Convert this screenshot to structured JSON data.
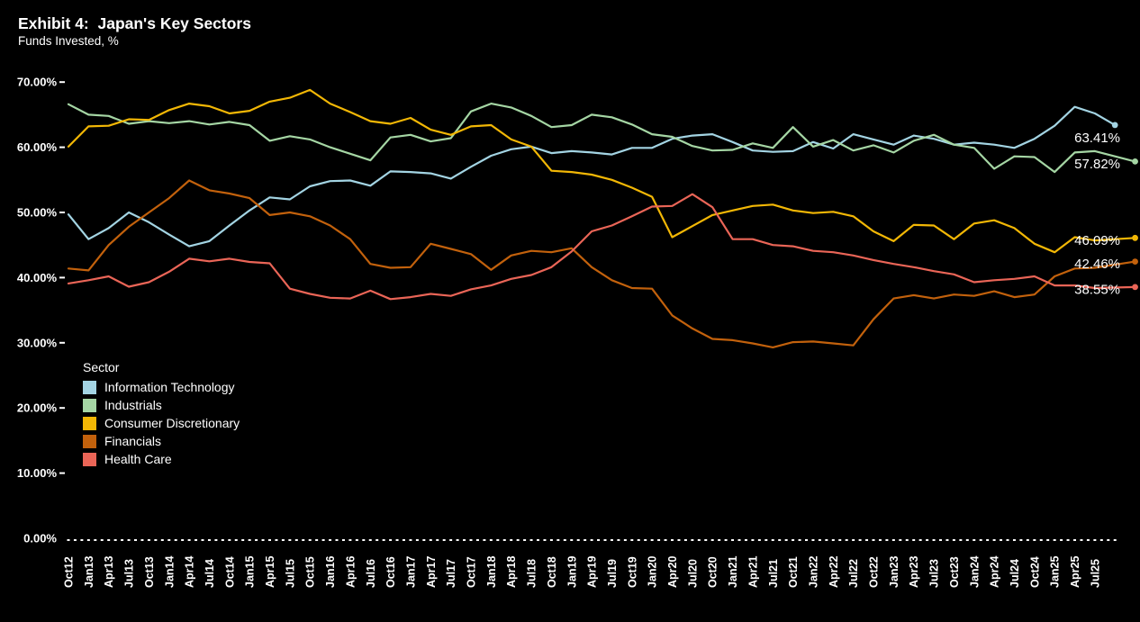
{
  "page": {
    "background": "#000000",
    "text_color": "#ffffff"
  },
  "header": {
    "title": "Exhibit 4:  Japan's Key Sectors",
    "subtitle": "Funds Invested, %"
  },
  "legend": {
    "title": "Sector"
  },
  "chart_data": {
    "type": "line",
    "title": "Exhibit 4:  Japan's Key Sectors",
    "ylabel": "Funds Invested, %",
    "ylim": [
      0,
      70
    ],
    "grid": false,
    "legend_position": "left-middle",
    "y_tick_labels": [
      "70.00%",
      "60.00%",
      "50.00%",
      "40.00%",
      "30.00%",
      "20.00%",
      "10.00%",
      "0.00%"
    ],
    "y_tick_values": [
      70,
      60,
      50,
      40,
      30,
      20,
      10,
      0
    ],
    "categories": [
      "Oct12",
      "Jan13",
      "Apr13",
      "Jul13",
      "Oct13",
      "Jan14",
      "Apr14",
      "Jul14",
      "Oct14",
      "Jan15",
      "Apr15",
      "Jul15",
      "Oct15",
      "Jan16",
      "Apr16",
      "Jul16",
      "Oct16",
      "Jan17",
      "Apr17",
      "Jul17",
      "Oct17",
      "Jan18",
      "Apr18",
      "Jul18",
      "Oct18",
      "Jan19",
      "Apr19",
      "Jul19",
      "Oct19",
      "Jan20",
      "Apr20",
      "Jul20",
      "Oct20",
      "Jan21",
      "Apr21",
      "Jul21",
      "Oct21",
      "Jan22",
      "Apr22",
      "Jul22",
      "Oct22",
      "Jan23",
      "Apr23",
      "Jul23",
      "Oct23",
      "Jan24",
      "Apr24",
      "Jul24",
      "Oct24",
      "Jan25",
      "Apr25",
      "Jul25"
    ],
    "series": [
      {
        "name": "Information Technology",
        "color": "#A3D4E3",
        "end_label": "63.41%",
        "end_value": 63.41,
        "end_month": 156,
        "values": [
          49.7,
          45.9,
          47.6,
          50.0,
          48.5,
          46.6,
          44.8,
          45.6,
          48.0,
          50.3,
          52.3,
          52.0,
          54.0,
          54.8,
          54.9,
          54.1,
          56.3,
          56.2,
          56.0,
          55.2,
          57.0,
          58.7,
          59.7,
          60.1,
          59.1,
          59.4,
          59.2,
          58.9,
          59.9,
          59.9,
          61.3,
          61.8,
          62.0,
          60.8,
          59.5,
          59.3,
          59.4,
          60.8,
          59.8,
          62.0,
          61.2,
          60.4,
          61.8,
          61.3,
          60.4,
          60.7,
          60.4,
          59.9,
          61.3,
          63.3,
          66.2,
          65.2
        ]
      },
      {
        "name": "Industrials",
        "color": "#A5D6A4",
        "end_label": "57.82%",
        "end_value": 57.82,
        "end_month": 159,
        "values": [
          66.6,
          65.0,
          64.8,
          63.6,
          64.0,
          63.7,
          64.0,
          63.5,
          63.9,
          63.4,
          61.0,
          61.7,
          61.2,
          60.0,
          59.0,
          58.0,
          61.5,
          61.9,
          60.9,
          61.4,
          65.5,
          66.7,
          66.1,
          64.8,
          63.1,
          63.4,
          65.0,
          64.6,
          63.5,
          62.0,
          61.6,
          60.2,
          59.5,
          59.6,
          60.6,
          59.9,
          63.1,
          60.1,
          61.1,
          59.5,
          60.3,
          59.2,
          61.0,
          61.9,
          60.4,
          59.9,
          56.7,
          58.6,
          58.5,
          56.2,
          59.2,
          59.4
        ]
      },
      {
        "name": "Consumer Discretionary",
        "color": "#F2B705",
        "end_label": "46.09%",
        "end_value": 46.09,
        "end_month": 159,
        "values": [
          60.1,
          63.2,
          63.3,
          64.3,
          64.2,
          65.7,
          66.7,
          66.3,
          65.2,
          65.6,
          67.0,
          67.6,
          68.8,
          66.7,
          65.4,
          64.0,
          63.6,
          64.5,
          62.7,
          61.9,
          63.2,
          63.4,
          61.2,
          60.1,
          56.4,
          56.2,
          55.8,
          55.0,
          53.8,
          52.4,
          46.2,
          47.9,
          49.6,
          50.3,
          51.0,
          51.2,
          50.3,
          49.9,
          50.1,
          49.4,
          47.1,
          45.6,
          48.1,
          48.0,
          45.9,
          48.3,
          48.8,
          47.6,
          45.2,
          43.9,
          46.2,
          45.7
        ]
      },
      {
        "name": "Financials",
        "color": "#C2610C",
        "end_label": "42.46%",
        "end_value": 42.46,
        "end_month": 159,
        "values": [
          41.4,
          41.1,
          45.0,
          47.8,
          50.0,
          52.2,
          54.9,
          53.4,
          52.9,
          52.2,
          49.6,
          50.0,
          49.4,
          48.0,
          45.9,
          42.1,
          41.5,
          41.6,
          45.2,
          44.4,
          43.6,
          41.2,
          43.4,
          44.1,
          43.9,
          44.5,
          41.6,
          39.6,
          38.4,
          38.3,
          34.2,
          32.2,
          30.6,
          30.4,
          29.9,
          29.3,
          30.1,
          30.2,
          29.9,
          29.6,
          33.6,
          36.8,
          37.3,
          36.8,
          37.4,
          37.2,
          37.9,
          37.0,
          37.4,
          40.2,
          41.4,
          41.5
        ]
      },
      {
        "name": "Health Care",
        "color": "#EA6557",
        "end_label": "38.55%",
        "end_value": 38.55,
        "end_month": 159,
        "values": [
          39.1,
          39.6,
          40.2,
          38.6,
          39.3,
          40.9,
          42.9,
          42.5,
          42.9,
          42.4,
          42.2,
          38.3,
          37.5,
          36.9,
          36.8,
          38.0,
          36.7,
          37.0,
          37.5,
          37.2,
          38.2,
          38.8,
          39.8,
          40.4,
          41.6,
          44.0,
          47.1,
          48.0,
          49.4,
          50.9,
          51.0,
          52.8,
          50.8,
          45.9,
          45.9,
          45.0,
          44.8,
          44.1,
          43.9,
          43.4,
          42.7,
          42.1,
          41.6,
          41.0,
          40.5,
          39.3,
          39.6,
          39.8,
          40.2,
          38.8,
          38.8,
          38.4
        ]
      }
    ]
  }
}
